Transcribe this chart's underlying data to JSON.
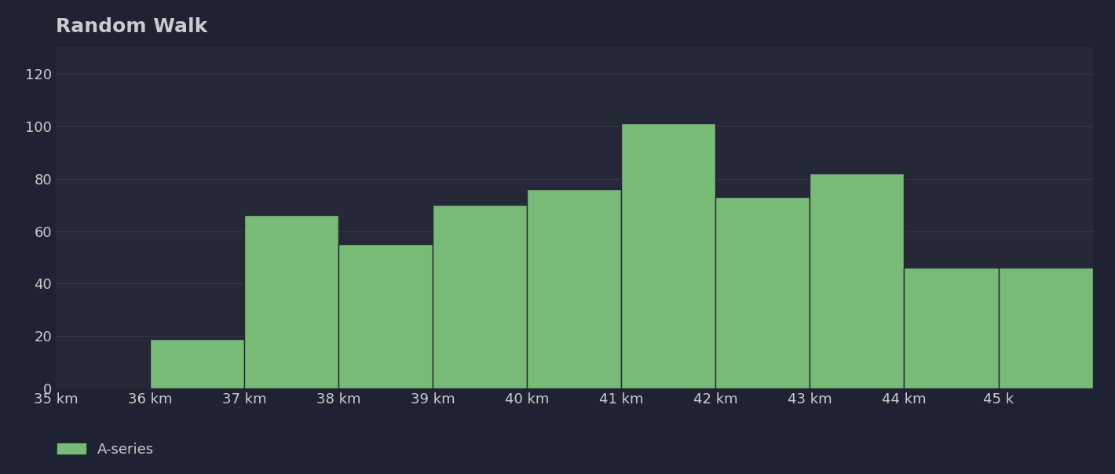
{
  "title": "Random Walk",
  "background_color": "#1f2233",
  "plot_bg_color": "#252836",
  "bar_color": "#77bb77",
  "bar_edge_color": "#252836",
  "grid_color": "#3a3a50",
  "text_color": "#cccccc",
  "categories": [
    "35 km",
    "36 km",
    "37 km",
    "38 km",
    "39 km",
    "40 km",
    "41 km",
    "42 km",
    "43 km",
    "44 km",
    "45 k"
  ],
  "values": [
    0,
    19,
    66,
    55,
    70,
    76,
    101,
    73,
    82,
    46,
    46
  ],
  "ylim": [
    0,
    130
  ],
  "yticks": [
    0,
    20,
    40,
    60,
    80,
    100,
    120
  ],
  "legend_label": "A-series",
  "title_fontsize": 18,
  "tick_fontsize": 13,
  "legend_fontsize": 13
}
